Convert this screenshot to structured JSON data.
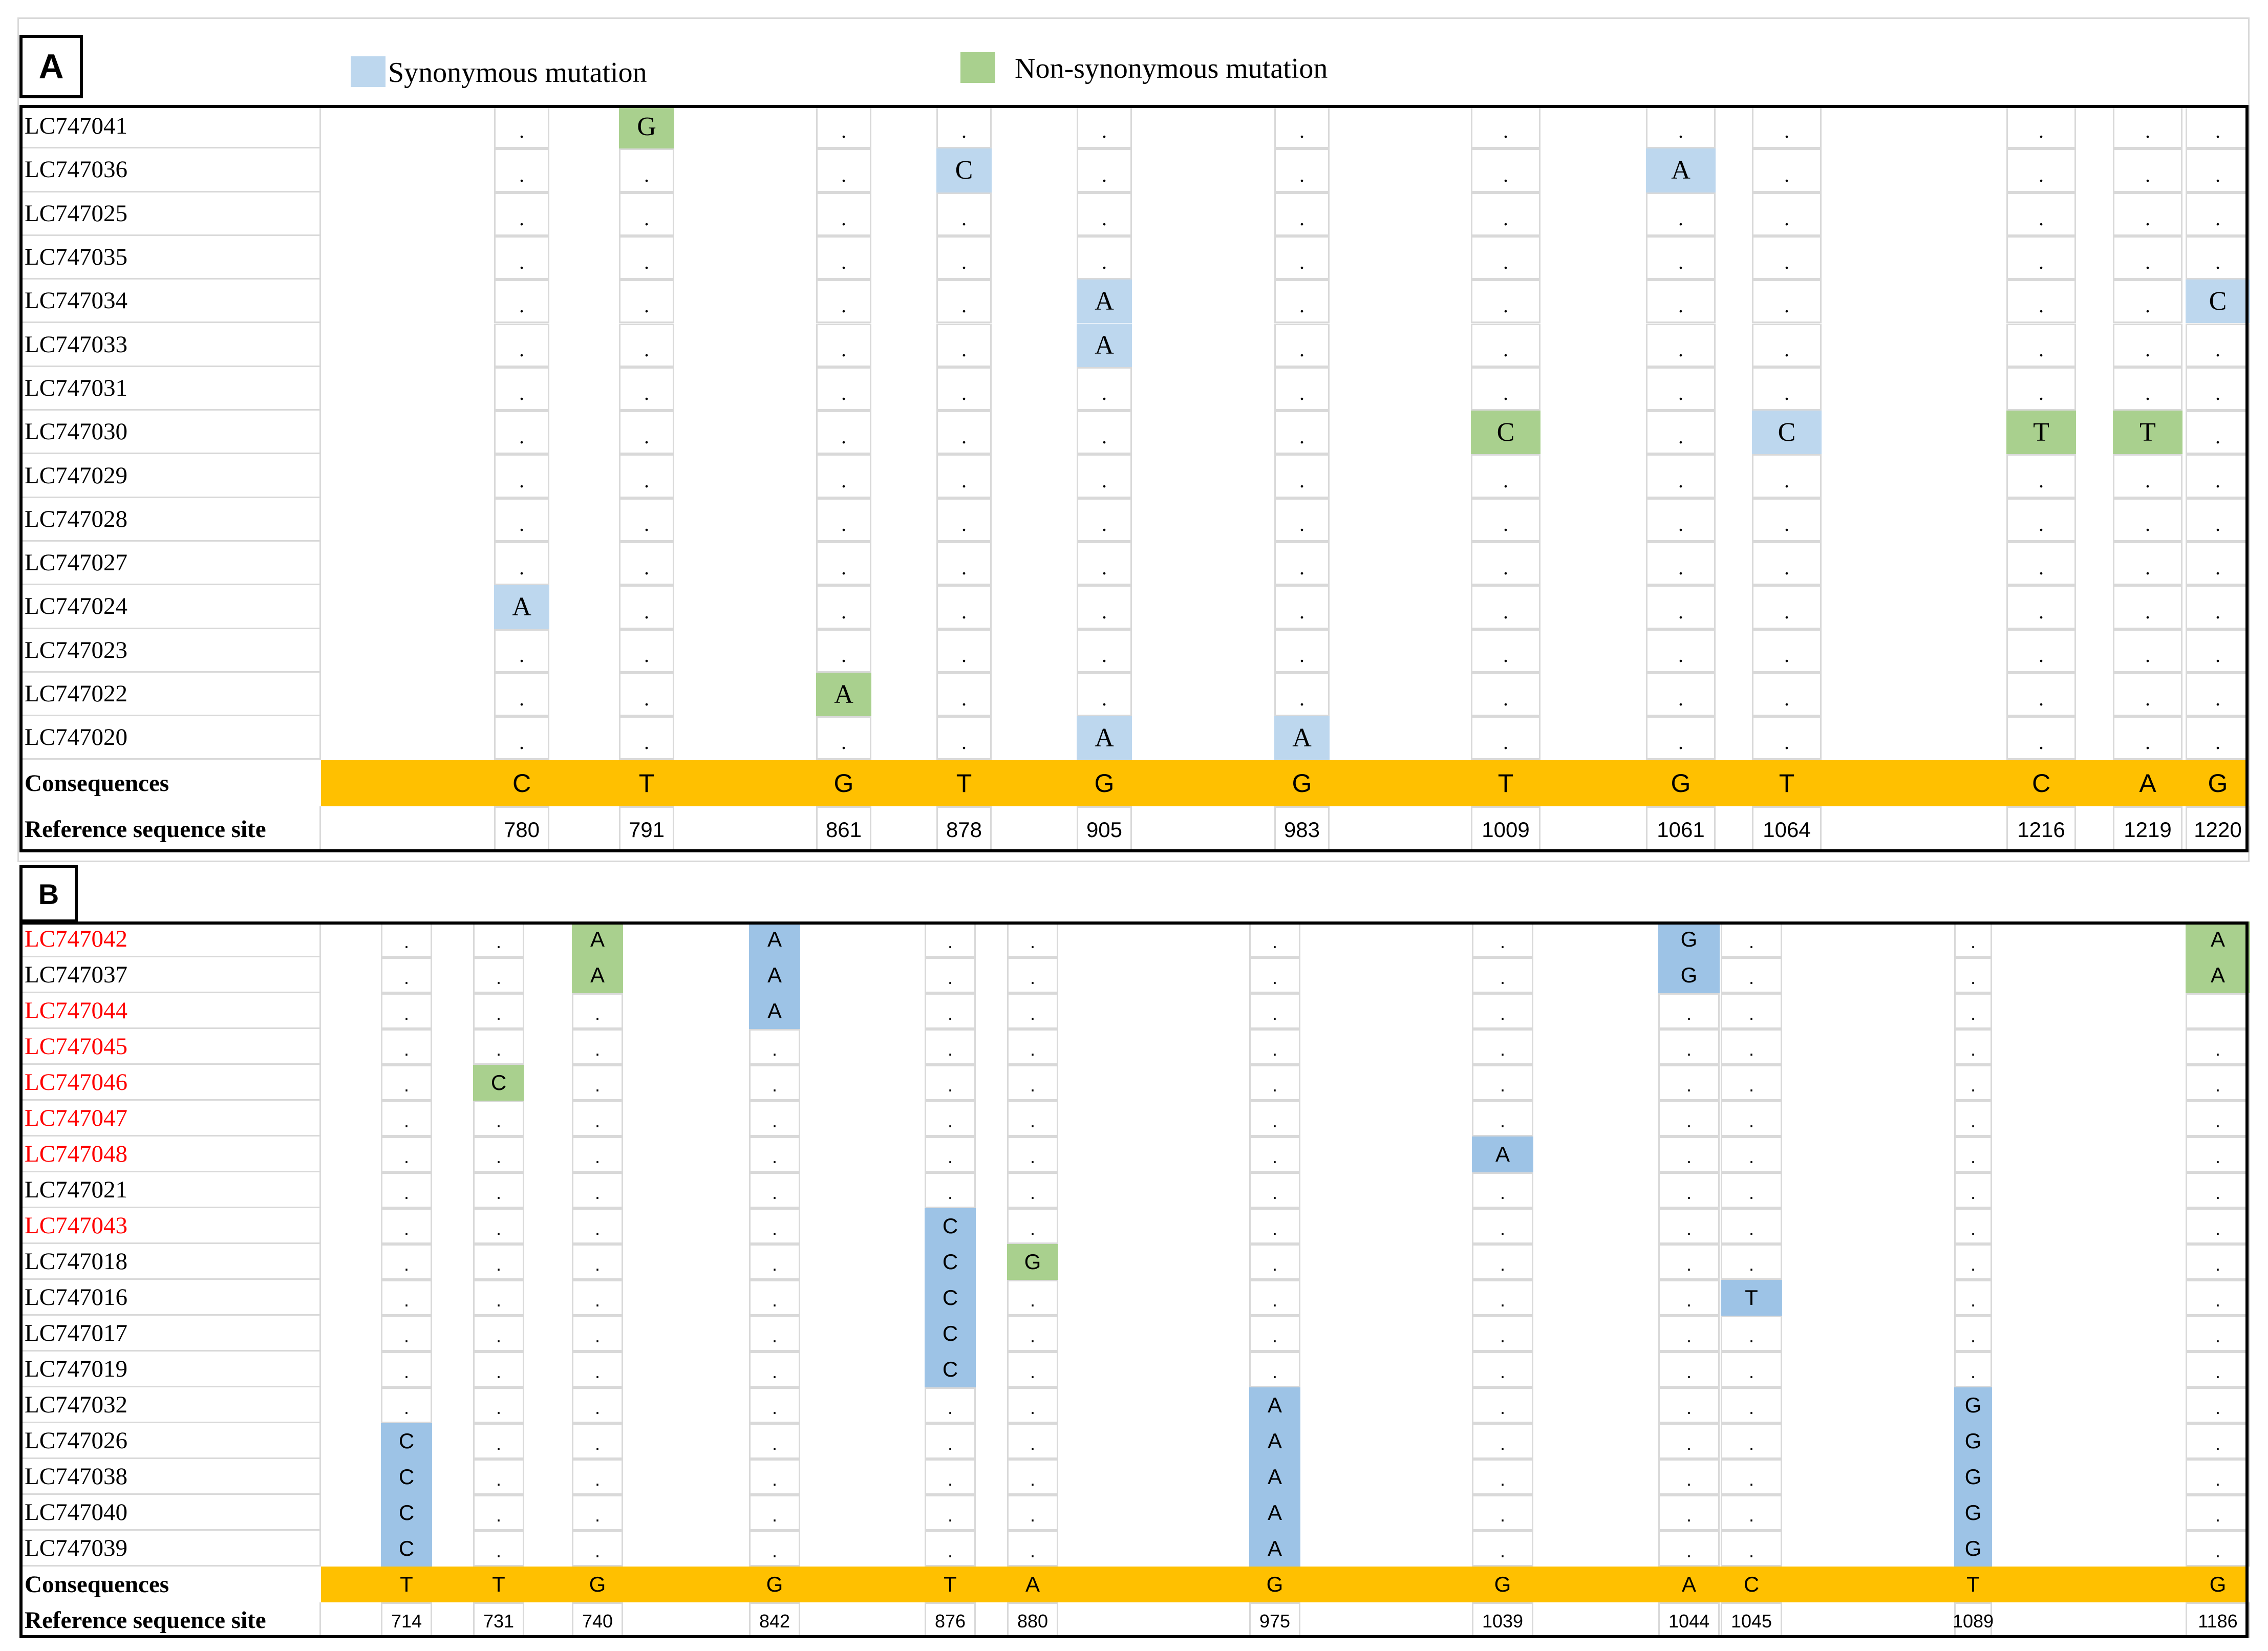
{
  "legend": {
    "synonymous_label": "Synonymous mutation",
    "nonsynonymous_label": "Non-synonymous mutation",
    "synonymous_color": "#bdd7ee",
    "nonsynonymous_color": "#a9d08e"
  },
  "colors": {
    "consequence_band": "#ffc000",
    "panelB_synonymous": "#9dc3e6",
    "panelB_nonsynonymous": "#a9d08e",
    "red_accession": "#ff0000",
    "grid": "#d9d9d9"
  },
  "panelA": {
    "tag": "A",
    "consequences_label": "Consequences",
    "reference_label": "Reference sequence site",
    "sites": [
      "780",
      "791",
      "861",
      "878",
      "905",
      "983",
      "1009",
      "1061",
      "1064",
      "1216",
      "1219",
      "1220"
    ],
    "consequences": [
      "C",
      "T",
      "G",
      "T",
      "G",
      "G",
      "T",
      "G",
      "T",
      "C",
      "A",
      "G"
    ],
    "rows": [
      {
        "id": "LC747041",
        "values": [
          ".",
          "G",
          ".",
          ".",
          ".",
          ".",
          ".",
          ".",
          ".",
          ".",
          ".",
          "."
        ],
        "types": [
          "",
          "n",
          "",
          "",
          "",
          "",
          "",
          "",
          "",
          "",
          "",
          ""
        ]
      },
      {
        "id": "LC747036",
        "values": [
          ".",
          ".",
          ".",
          "C",
          ".",
          ".",
          ".",
          "A",
          ".",
          ".",
          ".",
          "."
        ],
        "types": [
          "",
          "",
          "",
          "s",
          "",
          "",
          "",
          "s",
          "",
          "",
          "",
          ""
        ]
      },
      {
        "id": "LC747025",
        "values": [
          ".",
          ".",
          ".",
          ".",
          ".",
          ".",
          ".",
          ".",
          ".",
          ".",
          ".",
          "."
        ],
        "types": [
          "",
          "",
          "",
          "",
          "",
          "",
          "",
          "",
          "",
          "",
          "",
          ""
        ]
      },
      {
        "id": "LC747035",
        "values": [
          ".",
          ".",
          ".",
          ".",
          ".",
          ".",
          ".",
          ".",
          ".",
          ".",
          ".",
          "."
        ],
        "types": [
          "",
          "",
          "",
          "",
          "",
          "",
          "",
          "",
          "",
          "",
          "",
          ""
        ]
      },
      {
        "id": "LC747034",
        "values": [
          ".",
          ".",
          ".",
          ".",
          "A",
          ".",
          ".",
          ".",
          ".",
          ".",
          ".",
          "C"
        ],
        "types": [
          "",
          "",
          "",
          "",
          "s",
          "",
          "",
          "",
          "",
          "",
          "",
          "s"
        ]
      },
      {
        "id": "LC747033",
        "values": [
          ".",
          ".",
          ".",
          ".",
          "A",
          ".",
          ".",
          ".",
          ".",
          ".",
          ".",
          "."
        ],
        "types": [
          "",
          "",
          "",
          "",
          "s",
          "",
          "",
          "",
          "",
          "",
          "",
          ""
        ]
      },
      {
        "id": "LC747031",
        "values": [
          ".",
          ".",
          ".",
          ".",
          ".",
          ".",
          ".",
          ".",
          ".",
          ".",
          ".",
          "."
        ],
        "types": [
          "",
          "",
          "",
          "",
          "",
          "",
          "",
          "",
          "",
          "",
          "",
          ""
        ]
      },
      {
        "id": "LC747030",
        "values": [
          ".",
          ".",
          ".",
          ".",
          ".",
          ".",
          "C",
          ".",
          "C",
          "T",
          "T",
          "."
        ],
        "types": [
          "",
          "",
          "",
          "",
          "",
          "",
          "n",
          "",
          "s",
          "n",
          "n",
          ""
        ]
      },
      {
        "id": "LC747029",
        "values": [
          ".",
          ".",
          ".",
          ".",
          ".",
          ".",
          ".",
          ".",
          ".",
          ".",
          ".",
          "."
        ],
        "types": [
          "",
          "",
          "",
          "",
          "",
          "",
          "",
          "",
          "",
          "",
          "",
          ""
        ]
      },
      {
        "id": "LC747028",
        "values": [
          ".",
          ".",
          ".",
          ".",
          ".",
          ".",
          ".",
          ".",
          ".",
          ".",
          ".",
          "."
        ],
        "types": [
          "",
          "",
          "",
          "",
          "",
          "",
          "",
          "",
          "",
          "",
          "",
          ""
        ]
      },
      {
        "id": "LC747027",
        "values": [
          ".",
          ".",
          ".",
          ".",
          ".",
          ".",
          ".",
          ".",
          ".",
          ".",
          ".",
          "."
        ],
        "types": [
          "",
          "",
          "",
          "",
          "",
          "",
          "",
          "",
          "",
          "",
          "",
          ""
        ]
      },
      {
        "id": "LC747024",
        "values": [
          "A",
          ".",
          ".",
          ".",
          ".",
          ".",
          ".",
          ".",
          ".",
          ".",
          ".",
          "."
        ],
        "types": [
          "s",
          "",
          "",
          "",
          "",
          "",
          "",
          "",
          "",
          "",
          "",
          ""
        ]
      },
      {
        "id": "LC747023",
        "values": [
          ".",
          ".",
          ".",
          ".",
          ".",
          ".",
          ".",
          ".",
          ".",
          ".",
          ".",
          "."
        ],
        "types": [
          "",
          "",
          "",
          "",
          "",
          "",
          "",
          "",
          "",
          "",
          "",
          ""
        ]
      },
      {
        "id": "LC747022",
        "values": [
          ".",
          ".",
          "A",
          ".",
          ".",
          ".",
          ".",
          ".",
          ".",
          ".",
          ".",
          "."
        ],
        "types": [
          "",
          "",
          "n",
          "",
          "",
          "",
          "",
          "",
          "",
          "",
          "",
          ""
        ]
      },
      {
        "id": "LC747020",
        "values": [
          ".",
          ".",
          ".",
          ".",
          "A",
          "A",
          ".",
          ".",
          ".",
          ".",
          ".",
          "."
        ],
        "types": [
          "",
          "",
          "",
          "",
          "s",
          "s",
          "",
          "",
          "",
          "",
          "",
          ""
        ]
      }
    ]
  },
  "panelB": {
    "tag": "B",
    "consequences_label": "Consequences",
    "reference_label": "Reference sequence site",
    "sites": [
      "714",
      "731",
      "740",
      "842",
      "876",
      "880",
      "975",
      "1039",
      "1044",
      "1045",
      "1089",
      "1186"
    ],
    "consequences": [
      "T",
      "T",
      "G",
      "G",
      "T",
      "A",
      "G",
      "G",
      "A",
      "C",
      "T",
      "G"
    ],
    "rows": [
      {
        "id": "LC747042",
        "red": true,
        "values": [
          ".",
          ".",
          "A",
          "A",
          ".",
          ".",
          ".",
          ".",
          "G",
          ".",
          ".",
          "A"
        ],
        "types": [
          "",
          "",
          "n",
          "s",
          "",
          "",
          "",
          "",
          "s",
          "",
          "",
          "n"
        ]
      },
      {
        "id": "LC747037",
        "red": false,
        "values": [
          ".",
          ".",
          "A",
          "A",
          ".",
          ".",
          ".",
          ".",
          "G",
          ".",
          ".",
          "A"
        ],
        "types": [
          "",
          "",
          "n",
          "s",
          "",
          "",
          "",
          "",
          "s",
          "",
          "",
          "n"
        ]
      },
      {
        "id": "LC747044",
        "red": true,
        "values": [
          ".",
          ".",
          ".",
          "A",
          ".",
          ".",
          ".",
          ".",
          ".",
          ".",
          ".",
          ""
        ],
        "types": [
          "",
          "",
          "",
          "s",
          "",
          "",
          "",
          "",
          "",
          "",
          "",
          ""
        ]
      },
      {
        "id": "LC747045",
        "red": true,
        "values": [
          ".",
          ".",
          ".",
          ".",
          ".",
          ".",
          ".",
          ".",
          ".",
          ".",
          ".",
          "."
        ],
        "types": [
          "",
          "",
          "",
          "",
          "",
          "",
          "",
          "",
          "",
          "",
          "",
          ""
        ]
      },
      {
        "id": "LC747046",
        "red": true,
        "values": [
          ".",
          "C",
          ".",
          ".",
          ".",
          ".",
          ".",
          ".",
          ".",
          ".",
          ".",
          "."
        ],
        "types": [
          "",
          "n",
          "",
          "",
          "",
          "",
          "",
          "",
          "",
          "",
          "",
          ""
        ]
      },
      {
        "id": "LC747047",
        "red": true,
        "values": [
          ".",
          ".",
          ".",
          ".",
          ".",
          ".",
          ".",
          ".",
          ".",
          ".",
          ".",
          "."
        ],
        "types": [
          "",
          "",
          "",
          "",
          "",
          "",
          "",
          "",
          "",
          "",
          "",
          ""
        ]
      },
      {
        "id": "LC747048",
        "red": true,
        "values": [
          ".",
          ".",
          ".",
          ".",
          ".",
          ".",
          ".",
          "A",
          ".",
          ".",
          ".",
          "."
        ],
        "types": [
          "",
          "",
          "",
          "",
          "",
          "",
          "",
          "s",
          "",
          "",
          "",
          ""
        ]
      },
      {
        "id": "LC747021",
        "red": false,
        "values": [
          ".",
          ".",
          ".",
          ".",
          ".",
          ".",
          ".",
          ".",
          ".",
          ".",
          ".",
          "."
        ],
        "types": [
          "",
          "",
          "",
          "",
          "",
          "",
          "",
          "",
          "",
          "",
          "",
          ""
        ]
      },
      {
        "id": "LC747043",
        "red": true,
        "values": [
          ".",
          ".",
          ".",
          ".",
          "C",
          ".",
          ".",
          ".",
          ".",
          ".",
          ".",
          "."
        ],
        "types": [
          "",
          "",
          "",
          "",
          "s",
          "",
          "",
          "",
          "",
          "",
          "",
          ""
        ]
      },
      {
        "id": "LC747018",
        "red": false,
        "values": [
          ".",
          ".",
          ".",
          ".",
          "C",
          "G",
          ".",
          ".",
          ".",
          ".",
          ".",
          "."
        ],
        "types": [
          "",
          "",
          "",
          "",
          "s",
          "n",
          "",
          "",
          "",
          "",
          "",
          ""
        ]
      },
      {
        "id": "LC747016",
        "red": false,
        "values": [
          ".",
          ".",
          ".",
          ".",
          "C",
          ".",
          ".",
          ".",
          ".",
          "T",
          ".",
          "."
        ],
        "types": [
          "",
          "",
          "",
          "",
          "s",
          "",
          "",
          "",
          "",
          "s",
          "",
          ""
        ]
      },
      {
        "id": "LC747017",
        "red": false,
        "values": [
          ".",
          ".",
          ".",
          ".",
          "C",
          ".",
          ".",
          ".",
          ".",
          ".",
          ".",
          "."
        ],
        "types": [
          "",
          "",
          "",
          "",
          "s",
          "",
          "",
          "",
          "",
          "",
          "",
          ""
        ]
      },
      {
        "id": "LC747019",
        "red": false,
        "values": [
          ".",
          ".",
          ".",
          ".",
          "C",
          ".",
          ".",
          ".",
          ".",
          ".",
          ".",
          "."
        ],
        "types": [
          "",
          "",
          "",
          "",
          "s",
          "",
          "",
          "",
          "",
          "",
          "",
          ""
        ]
      },
      {
        "id": "LC747032",
        "red": false,
        "values": [
          ".",
          ".",
          ".",
          ".",
          ".",
          ".",
          "A",
          ".",
          ".",
          ".",
          "G",
          "."
        ],
        "types": [
          "",
          "",
          "",
          "",
          "",
          "",
          "s",
          "",
          "",
          "",
          "s",
          ""
        ]
      },
      {
        "id": "LC747026",
        "red": false,
        "values": [
          "C",
          ".",
          ".",
          ".",
          ".",
          ".",
          "A",
          ".",
          ".",
          ".",
          "G",
          "."
        ],
        "types": [
          "s",
          "",
          "",
          "",
          "",
          "",
          "s",
          "",
          "",
          "",
          "s",
          ""
        ]
      },
      {
        "id": "LC747038",
        "red": false,
        "values": [
          "C",
          ".",
          ".",
          ".",
          ".",
          ".",
          "A",
          ".",
          ".",
          ".",
          "G",
          "."
        ],
        "types": [
          "s",
          "",
          "",
          "",
          "",
          "",
          "s",
          "",
          "",
          "",
          "s",
          ""
        ]
      },
      {
        "id": "LC747040",
        "red": false,
        "values": [
          "C",
          ".",
          ".",
          ".",
          ".",
          ".",
          "A",
          ".",
          ".",
          ".",
          "G",
          "."
        ],
        "types": [
          "s",
          "",
          "",
          "",
          "",
          "",
          "s",
          "",
          "",
          "",
          "s",
          ""
        ]
      },
      {
        "id": "LC747039",
        "red": false,
        "values": [
          "C",
          ".",
          ".",
          ".",
          ".",
          ".",
          "A",
          ".",
          ".",
          ".",
          "G",
          "."
        ],
        "types": [
          "s",
          "",
          "",
          "",
          "",
          "",
          "s",
          "",
          "",
          "",
          "s",
          ""
        ]
      }
    ]
  }
}
